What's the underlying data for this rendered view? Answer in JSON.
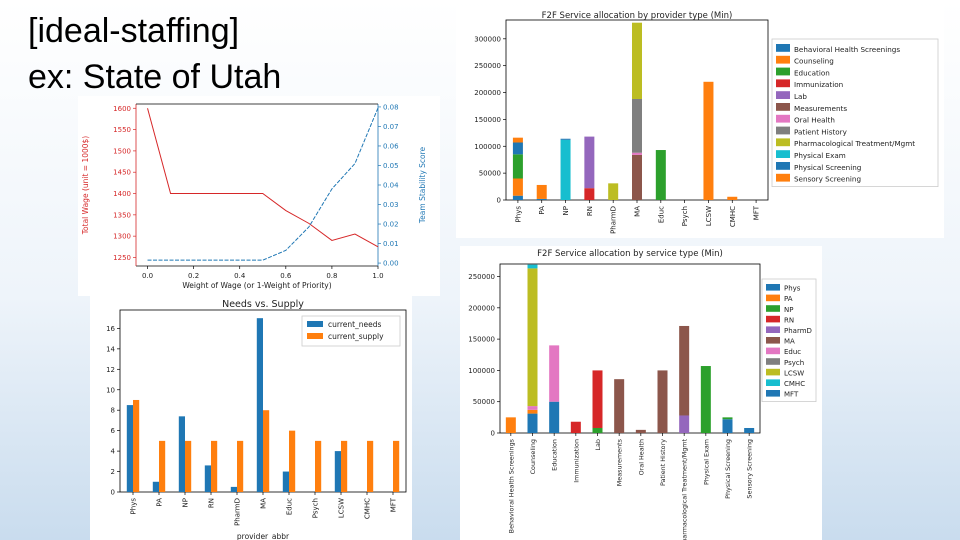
{
  "slide": {
    "title_line1": "[ideal-staffing]",
    "title_line2": "ex: State of Utah"
  },
  "chart_data": [
    {
      "type": "line",
      "title": "",
      "xlabel": "Weight of Wage (or 1-Weight of Priority)",
      "ylabel": "Total Wage (unit = 1000$)",
      "y2label": "Team Stability Score",
      "xticks": [
        "0.0",
        "0.2",
        "0.4",
        "0.6",
        "0.8",
        "1.0"
      ],
      "yticks": [
        "1250",
        "1300",
        "1350",
        "1400",
        "1450",
        "1500",
        "1550",
        "1600"
      ],
      "y2ticks": [
        "0.00",
        "0.01",
        "0.02",
        "0.03",
        "0.04",
        "0.05",
        "0.06",
        "0.07",
        "0.08"
      ],
      "xlim": [
        -0.05,
        1.0
      ],
      "ylim": [
        1230,
        1610
      ],
      "y2lim": [
        -0.0015,
        0.0815
      ],
      "colors": {
        "wage": "#d62728",
        "stability": "#1f77b4"
      },
      "series": [
        {
          "axis": "left",
          "x": [
            0,
            0.1,
            0.2,
            0.3,
            0.4,
            0.5,
            0.6,
            0.7,
            0.8,
            0.9,
            1.0
          ],
          "y": [
            1600,
            1400,
            1400,
            1400,
            1400,
            1400,
            1360,
            1330,
            1290,
            1305,
            1275
          ]
        },
        {
          "axis": "right",
          "x": [
            0,
            0.1,
            0.2,
            0.3,
            0.4,
            0.5,
            0.6,
            0.7,
            0.8,
            0.9,
            1.0
          ],
          "y": [
            0.0015,
            0.0015,
            0.0015,
            0.0015,
            0.0015,
            0.0015,
            0.0065,
            0.0185,
            0.038,
            0.051,
            0.0795
          ]
        }
      ]
    },
    {
      "type": "bar",
      "title": "F2F Service allocation by provider type (Min)",
      "xlabel": "",
      "ylabel": "",
      "ylim": [
        0,
        335000
      ],
      "yticks": [
        0,
        50000,
        100000,
        150000,
        200000,
        250000,
        300000
      ],
      "categories": [
        "Phys",
        "PA",
        "NP",
        "RN",
        "PharmD",
        "MA",
        "Educ",
        "Psych",
        "LCSW",
        "CMHC",
        "MFT"
      ],
      "legend": "right",
      "series": [
        {
          "name": "Behavioral Health Screenings",
          "color": "#1f77b4",
          "values": [
            8000,
            2000,
            0,
            0,
            0,
            0,
            0,
            0,
            0,
            0,
            0
          ]
        },
        {
          "name": "Counseling",
          "color": "#ff7f0e",
          "values": [
            32000,
            26000,
            0,
            0,
            0,
            0,
            0,
            0,
            220000,
            6000,
            0
          ]
        },
        {
          "name": "Education",
          "color": "#2ca02c",
          "values": [
            45000,
            0,
            0,
            0,
            0,
            0,
            93000,
            0,
            0,
            0,
            0
          ]
        },
        {
          "name": "Immunization",
          "color": "#d62728",
          "values": [
            0,
            0,
            0,
            22000,
            0,
            0,
            0,
            0,
            0,
            0,
            0
          ]
        },
        {
          "name": "Lab",
          "color": "#9467bd",
          "values": [
            0,
            0,
            0,
            96000,
            0,
            0,
            0,
            0,
            0,
            0,
            0
          ]
        },
        {
          "name": "Measurements",
          "color": "#8c564b",
          "values": [
            0,
            0,
            0,
            0,
            0,
            84000,
            0,
            0,
            0,
            0,
            0
          ]
        },
        {
          "name": "Oral Health",
          "color": "#e377c2",
          "values": [
            0,
            0,
            0,
            0,
            0,
            4000,
            0,
            0,
            0,
            0,
            0
          ]
        },
        {
          "name": "Patient History",
          "color": "#7f7f7f",
          "values": [
            0,
            0,
            0,
            0,
            0,
            100000,
            0,
            0,
            0,
            0,
            0
          ]
        },
        {
          "name": "Pharmacological Treatment/Mgmt",
          "color": "#bcbd22",
          "values": [
            0,
            0,
            0,
            0,
            31000,
            142000,
            0,
            0,
            0,
            0,
            0
          ]
        },
        {
          "name": "Physical Exam",
          "color": "#17becf",
          "values": [
            0,
            0,
            112000,
            0,
            0,
            0,
            0,
            0,
            0,
            0,
            0
          ]
        },
        {
          "name": "Physical Screening",
          "color": "#1f77b4",
          "values": [
            22000,
            0,
            2000,
            0,
            0,
            0,
            0,
            0,
            0,
            0,
            0
          ]
        },
        {
          "name": "Sensory Screening",
          "color": "#ff7f0e",
          "values": [
            9000,
            0,
            0,
            0,
            0,
            0,
            0,
            0,
            0,
            0,
            0
          ]
        }
      ]
    },
    {
      "type": "bar",
      "title": "Needs vs. Supply",
      "xlabel": "provider_abbr",
      "ylabel": "",
      "ylim": [
        0,
        17.8
      ],
      "yticks": [
        0,
        2,
        4,
        6,
        8,
        10,
        12,
        14,
        16
      ],
      "categories": [
        "Phys",
        "PA",
        "NP",
        "RN",
        "PharmD",
        "MA",
        "Educ",
        "Psych",
        "LCSW",
        "CMHC",
        "MFT"
      ],
      "legend": "top-right",
      "series": [
        {
          "name": "current_needs",
          "color": "#1f77b4",
          "values": [
            8.5,
            1,
            7.4,
            2.6,
            0.5,
            17,
            2,
            0,
            4,
            0,
            0
          ]
        },
        {
          "name": "current_supply",
          "color": "#ff7f0e",
          "values": [
            9,
            5,
            5,
            5,
            5,
            8,
            6,
            5,
            5,
            5,
            5
          ]
        }
      ]
    },
    {
      "type": "bar",
      "title": "F2F Service allocation by service type (Min)",
      "xlabel": "",
      "ylabel": "",
      "ylim": [
        0,
        270000
      ],
      "yticks": [
        0,
        50000,
        100000,
        150000,
        200000,
        250000
      ],
      "categories": [
        "Behavioral Health Screenings",
        "Counseling",
        "Education",
        "Immunization",
        "Lab",
        "Measurements",
        "Oral Health",
        "Patient History",
        "Pharmacological Treatment/Mgmt",
        "Physical Exam",
        "Physical Screening",
        "Sensory Screening"
      ],
      "legend": "right",
      "series": [
        {
          "name": "Phys",
          "color": "#1f77b4",
          "values": [
            0,
            31000,
            50000,
            0,
            0,
            0,
            0,
            0,
            0,
            0,
            22000,
            8000
          ]
        },
        {
          "name": "PA",
          "color": "#ff7f0e",
          "values": [
            25000,
            6000,
            0,
            0,
            0,
            0,
            0,
            0,
            0,
            0,
            0,
            0
          ]
        },
        {
          "name": "NP",
          "color": "#2ca02c",
          "values": [
            0,
            0,
            0,
            0,
            8000,
            0,
            0,
            0,
            0,
            107000,
            3000,
            0
          ]
        },
        {
          "name": "RN",
          "color": "#d62728",
          "values": [
            0,
            0,
            0,
            18000,
            92000,
            0,
            0,
            0,
            0,
            0,
            0,
            0
          ]
        },
        {
          "name": "PharmD",
          "color": "#9467bd",
          "values": [
            0,
            0,
            0,
            0,
            0,
            0,
            0,
            0,
            28000,
            0,
            0,
            0
          ]
        },
        {
          "name": "MA",
          "color": "#8c564b",
          "values": [
            0,
            0,
            0,
            0,
            0,
            86000,
            5000,
            100000,
            143000,
            0,
            0,
            0
          ]
        },
        {
          "name": "Educ",
          "color": "#e377c2",
          "values": [
            0,
            6000,
            90000,
            0,
            0,
            0,
            0,
            0,
            0,
            0,
            0,
            0
          ]
        },
        {
          "name": "Psych",
          "color": "#7f7f7f",
          "values": [
            0,
            0,
            0,
            0,
            0,
            0,
            0,
            0,
            0,
            0,
            0,
            0
          ]
        },
        {
          "name": "LCSW",
          "color": "#bcbd22",
          "values": [
            0,
            220000,
            0,
            0,
            0,
            0,
            0,
            0,
            0,
            0,
            0,
            0
          ]
        },
        {
          "name": "CMHC",
          "color": "#17becf",
          "values": [
            0,
            6000,
            0,
            0,
            0,
            0,
            0,
            0,
            0,
            0,
            0,
            0
          ]
        },
        {
          "name": "MFT",
          "color": "#1f77b4",
          "values": [
            0,
            0,
            0,
            0,
            0,
            0,
            0,
            0,
            0,
            0,
            0,
            0
          ]
        }
      ]
    }
  ]
}
